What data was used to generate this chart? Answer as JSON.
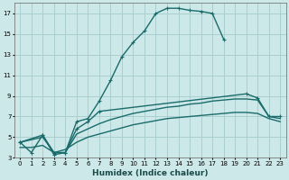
{
  "xlabel": "Humidex (Indice chaleur)",
  "bg_color": "#cce8e8",
  "grid_color": "#aacfcf",
  "line_color": "#1a6b6b",
  "xlim": [
    -0.5,
    23.5
  ],
  "ylim": [
    3,
    18
  ],
  "xticks": [
    0,
    1,
    2,
    3,
    4,
    5,
    6,
    7,
    8,
    9,
    10,
    11,
    12,
    13,
    14,
    15,
    16,
    17,
    18,
    19,
    20,
    21,
    22,
    23
  ],
  "yticks": [
    3,
    5,
    7,
    9,
    11,
    13,
    15,
    17
  ],
  "s1_x": [
    0,
    1,
    2,
    3,
    4,
    5,
    6,
    7,
    8,
    9,
    10,
    11,
    12,
    13,
    14,
    15,
    16,
    17,
    18
  ],
  "s1_y": [
    4.5,
    3.5,
    5.2,
    3.3,
    3.5,
    6.5,
    6.8,
    8.5,
    10.5,
    12.8,
    14.2,
    15.3,
    17.0,
    17.5,
    17.5,
    17.3,
    17.2,
    17.0,
    14.5
  ],
  "s2_x": [
    0,
    2,
    3,
    4,
    5,
    6,
    7,
    20,
    21,
    22,
    23
  ],
  "s2_y": [
    4.5,
    5.2,
    3.5,
    3.5,
    5.8,
    6.5,
    7.5,
    9.2,
    8.8,
    7.0,
    7.0
  ],
  "s3_x": [
    0,
    2,
    3,
    4,
    5,
    6,
    7,
    8,
    9,
    10,
    11,
    12,
    13,
    14,
    15,
    16,
    17,
    18,
    19,
    20,
    21,
    22,
    23
  ],
  "s3_y": [
    4.5,
    5.0,
    3.5,
    3.5,
    5.3,
    5.8,
    6.3,
    6.7,
    7.0,
    7.3,
    7.5,
    7.7,
    7.9,
    8.0,
    8.2,
    8.3,
    8.5,
    8.6,
    8.7,
    8.7,
    8.6,
    7.0,
    6.8
  ],
  "s4_x": [
    0,
    1,
    2,
    3,
    4,
    5,
    6,
    7,
    8,
    9,
    10,
    11,
    12,
    13,
    14,
    15,
    16,
    17,
    18,
    19,
    20,
    21,
    22,
    23
  ],
  "s4_y": [
    4.0,
    4.0,
    4.2,
    3.5,
    3.8,
    4.5,
    5.0,
    5.3,
    5.6,
    5.9,
    6.2,
    6.4,
    6.6,
    6.8,
    6.9,
    7.0,
    7.1,
    7.2,
    7.3,
    7.4,
    7.4,
    7.3,
    6.8,
    6.5
  ]
}
